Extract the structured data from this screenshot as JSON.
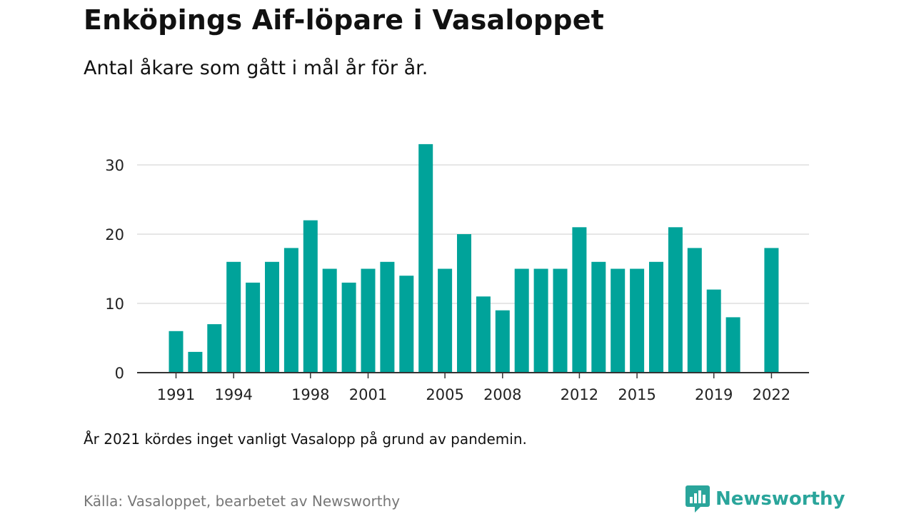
{
  "header": {
    "title": "Enköpings Aif-löpare i Vasaloppet",
    "subtitle": "Antal åkare som gått i mål år för år."
  },
  "footer": {
    "note": "År 2021 kördes inget vanligt Vasalopp på grund av pandemin.",
    "source": "Källa: Vasaloppet, bearbetet av Newsworthy",
    "logo_text": "Newsworthy",
    "logo_icon": "newsworthy-chart-logo-icon"
  },
  "colors": {
    "bar": "#00a39a",
    "brand": "#2aa59b",
    "grid": "#dddddd",
    "axis": "#333333"
  },
  "chart_data": {
    "type": "bar",
    "title": "Enköpings Aif-löpare i Vasaloppet",
    "subtitle": "Antal åkare som gått i mål år för år.",
    "x": [
      1991,
      1992,
      1993,
      1994,
      1995,
      1996,
      1997,
      1998,
      1999,
      2000,
      2001,
      2002,
      2003,
      2004,
      2005,
      2006,
      2007,
      2008,
      2009,
      2010,
      2011,
      2012,
      2013,
      2014,
      2015,
      2016,
      2017,
      2018,
      2019,
      2020,
      2021,
      2022
    ],
    "values": [
      6,
      3,
      7,
      16,
      13,
      16,
      18,
      22,
      15,
      13,
      15,
      16,
      14,
      33,
      15,
      20,
      11,
      9,
      15,
      15,
      15,
      21,
      16,
      15,
      15,
      16,
      21,
      18,
      12,
      8,
      null,
      18
    ],
    "x_ticks": [
      1991,
      1994,
      1998,
      2001,
      2005,
      2008,
      2012,
      2015,
      2019,
      2022
    ],
    "y_ticks": [
      0,
      10,
      20,
      30
    ],
    "ylim": [
      0,
      33
    ],
    "xlabel": "",
    "ylabel": "",
    "grid": true,
    "legend": "none"
  }
}
